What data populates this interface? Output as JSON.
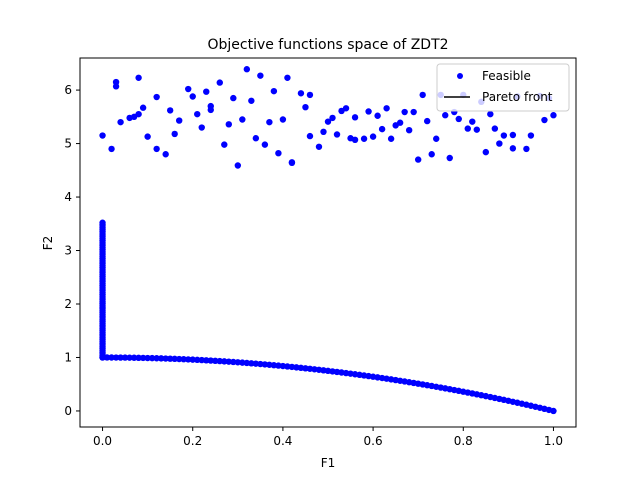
{
  "chart_data": {
    "type": "scatter",
    "title": "Objective functions space of ZDT2",
    "xlabel": "F1",
    "ylabel": "F2",
    "xlim": [
      -0.05,
      1.05
    ],
    "ylim": [
      -0.3,
      6.6
    ],
    "xticks": [
      "0.0",
      "0.2",
      "0.4",
      "0.6",
      "0.8",
      "1.0"
    ],
    "xtick_values": [
      0,
      0.2,
      0.4,
      0.6,
      0.8,
      1.0
    ],
    "yticks": [
      "0",
      "1",
      "2",
      "3",
      "4",
      "5",
      "6"
    ],
    "ytick_values": [
      0,
      1,
      2,
      3,
      4,
      5,
      6
    ],
    "grid": false,
    "legend": {
      "position": "top-right",
      "entries": [
        {
          "label": "Feasible",
          "marker": "circle",
          "color": "#0000ff"
        },
        {
          "label": "Pareto front",
          "marker": "line",
          "color": "#000000"
        }
      ]
    },
    "series": [
      {
        "name": "Feasible",
        "color": "#0000ff",
        "cluster_points": [
          [
            0.0,
            5.15
          ],
          [
            0.02,
            4.9
          ],
          [
            0.03,
            6.15
          ],
          [
            0.03,
            6.07
          ],
          [
            0.04,
            5.4
          ],
          [
            0.06,
            5.48
          ],
          [
            0.07,
            5.5
          ],
          [
            0.08,
            5.55
          ],
          [
            0.08,
            6.23
          ],
          [
            0.09,
            5.67
          ],
          [
            0.1,
            5.13
          ],
          [
            0.12,
            4.9
          ],
          [
            0.12,
            5.87
          ],
          [
            0.14,
            4.8
          ],
          [
            0.15,
            5.62
          ],
          [
            0.16,
            5.18
          ],
          [
            0.17,
            5.43
          ],
          [
            0.19,
            6.02
          ],
          [
            0.2,
            5.88
          ],
          [
            0.21,
            5.55
          ],
          [
            0.22,
            5.3
          ],
          [
            0.23,
            5.97
          ],
          [
            0.24,
            5.63
          ],
          [
            0.24,
            5.7
          ],
          [
            0.26,
            6.14
          ],
          [
            0.27,
            4.98
          ],
          [
            0.28,
            5.36
          ],
          [
            0.29,
            5.85
          ],
          [
            0.3,
            4.59
          ],
          [
            0.31,
            5.45
          ],
          [
            0.32,
            6.39
          ],
          [
            0.33,
            5.8
          ],
          [
            0.34,
            5.1
          ],
          [
            0.35,
            6.27
          ],
          [
            0.36,
            4.98
          ],
          [
            0.37,
            5.4
          ],
          [
            0.38,
            5.98
          ],
          [
            0.39,
            4.82
          ],
          [
            0.4,
            5.45
          ],
          [
            0.41,
            6.23
          ],
          [
            0.42,
            4.64
          ],
          [
            0.42,
            4.65
          ],
          [
            0.44,
            5.94
          ],
          [
            0.45,
            5.68
          ],
          [
            0.46,
            5.91
          ],
          [
            0.46,
            5.14
          ],
          [
            0.48,
            4.94
          ],
          [
            0.49,
            5.22
          ],
          [
            0.5,
            5.41
          ],
          [
            0.51,
            5.48
          ],
          [
            0.52,
            5.17
          ],
          [
            0.53,
            5.61
          ],
          [
            0.54,
            5.66
          ],
          [
            0.55,
            5.1
          ],
          [
            0.56,
            5.07
          ],
          [
            0.56,
            5.49
          ],
          [
            0.58,
            5.09
          ],
          [
            0.59,
            5.6
          ],
          [
            0.6,
            5.13
          ],
          [
            0.61,
            5.52
          ],
          [
            0.62,
            5.27
          ],
          [
            0.63,
            5.66
          ],
          [
            0.64,
            5.09
          ],
          [
            0.65,
            5.34
          ],
          [
            0.66,
            5.39
          ],
          [
            0.67,
            5.59
          ],
          [
            0.68,
            5.25
          ],
          [
            0.69,
            5.59
          ],
          [
            0.7,
            4.7
          ],
          [
            0.71,
            5.91
          ],
          [
            0.72,
            5.42
          ],
          [
            0.73,
            4.8
          ],
          [
            0.74,
            5.09
          ],
          [
            0.75,
            5.91
          ],
          [
            0.76,
            5.53
          ],
          [
            0.77,
            4.73
          ],
          [
            0.78,
            5.59
          ],
          [
            0.79,
            5.46
          ],
          [
            0.8,
            5.91
          ],
          [
            0.81,
            5.28
          ],
          [
            0.82,
            5.41
          ],
          [
            0.83,
            5.26
          ],
          [
            0.84,
            5.78
          ],
          [
            0.85,
            4.84
          ],
          [
            0.86,
            5.55
          ],
          [
            0.87,
            5.28
          ],
          [
            0.88,
            5.0
          ],
          [
            0.89,
            5.15
          ],
          [
            0.91,
            5.16
          ],
          [
            0.91,
            4.91
          ],
          [
            0.92,
            5.88
          ],
          [
            0.94,
            4.9
          ],
          [
            0.95,
            5.15
          ],
          [
            0.97,
            5.89
          ],
          [
            0.98,
            5.44
          ],
          [
            0.99,
            5.85
          ],
          [
            1.0,
            5.53
          ]
        ],
        "vertical_band": {
          "x": 0.0,
          "y_from": 1.0,
          "y_to": 3.52
        },
        "front_points_f1": [
          0.0,
          0.01,
          0.02,
          0.03,
          0.04,
          0.05,
          0.06,
          0.07,
          0.08,
          0.09,
          0.1,
          0.11,
          0.12,
          0.13,
          0.14,
          0.15,
          0.16,
          0.17,
          0.18,
          0.19,
          0.2,
          0.21,
          0.22,
          0.23,
          0.24,
          0.25,
          0.26,
          0.27,
          0.28,
          0.29,
          0.3,
          0.31,
          0.32,
          0.33,
          0.34,
          0.35,
          0.36,
          0.37,
          0.38,
          0.39,
          0.4,
          0.41,
          0.42,
          0.43,
          0.44,
          0.45,
          0.46,
          0.47,
          0.48,
          0.49,
          0.5,
          0.51,
          0.52,
          0.53,
          0.54,
          0.55,
          0.56,
          0.57,
          0.58,
          0.59,
          0.6,
          0.61,
          0.62,
          0.63,
          0.64,
          0.65,
          0.66,
          0.67,
          0.68,
          0.69,
          0.7,
          0.71,
          0.72,
          0.73,
          0.74,
          0.75,
          0.76,
          0.77,
          0.78,
          0.79,
          0.8,
          0.81,
          0.82,
          0.83,
          0.84,
          0.85,
          0.86,
          0.87,
          0.88,
          0.89,
          0.9,
          0.91,
          0.92,
          0.93,
          0.94,
          0.95,
          0.96,
          0.97,
          0.98,
          0.99,
          1.0
        ]
      },
      {
        "name": "Pareto front",
        "color": "#000000",
        "curve": "F2 = 1 - F1^2",
        "x_range": [
          0.0,
          1.0
        ]
      }
    ]
  }
}
